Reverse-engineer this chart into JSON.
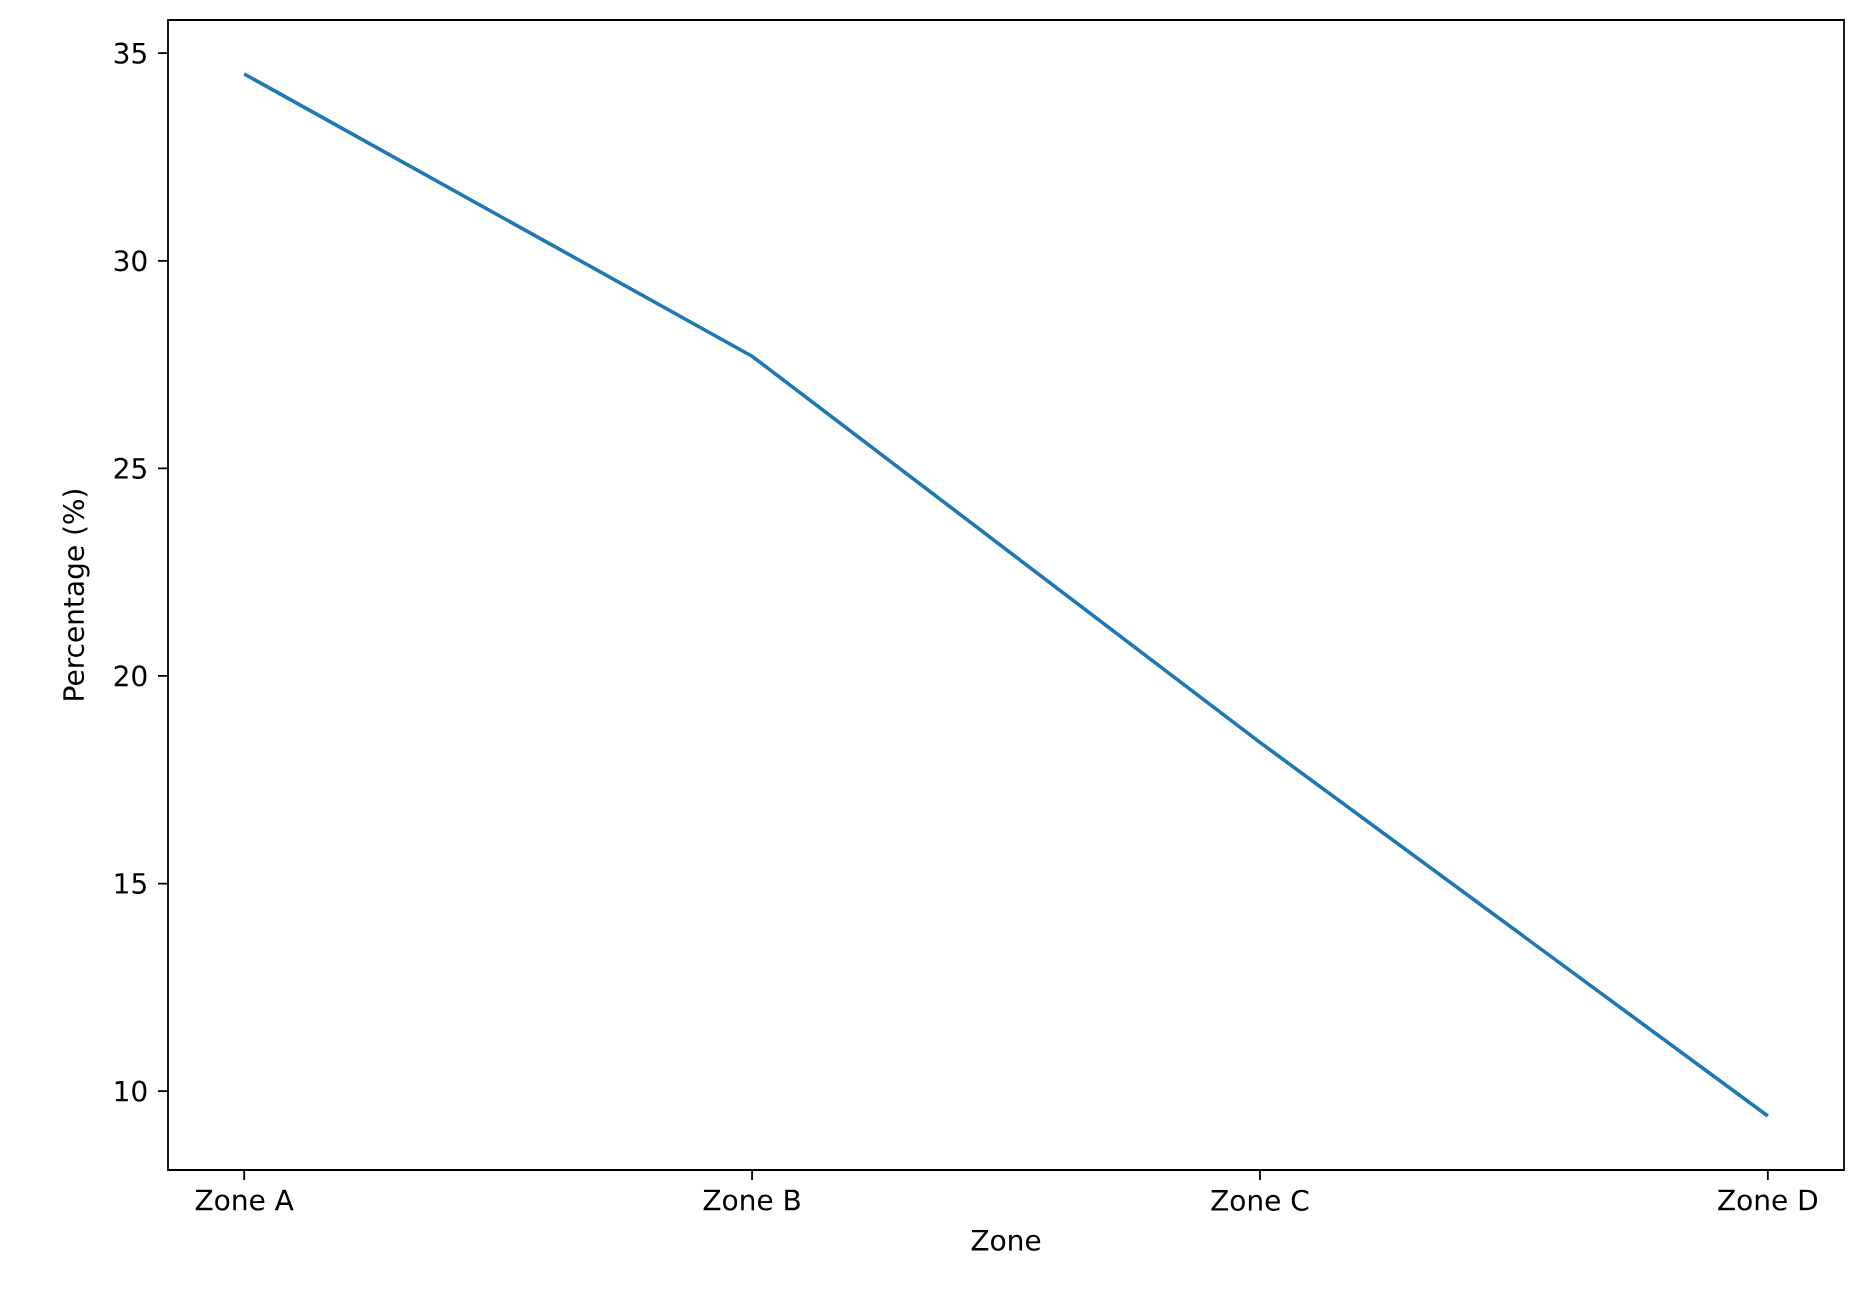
{
  "chart_data": {
    "type": "line",
    "xlabel": "Zone",
    "ylabel": "Percentage (%)",
    "categories": [
      "Zone A",
      "Zone B",
      "Zone C",
      "Zone D"
    ],
    "series": [
      {
        "color": "#1f77b4",
        "values": [
          34.5,
          27.7,
          18.4,
          9.4
        ]
      }
    ],
    "ylim": [
      8.1,
      35.8
    ],
    "yticks": [
      10,
      15,
      20,
      25,
      30,
      35
    ]
  }
}
